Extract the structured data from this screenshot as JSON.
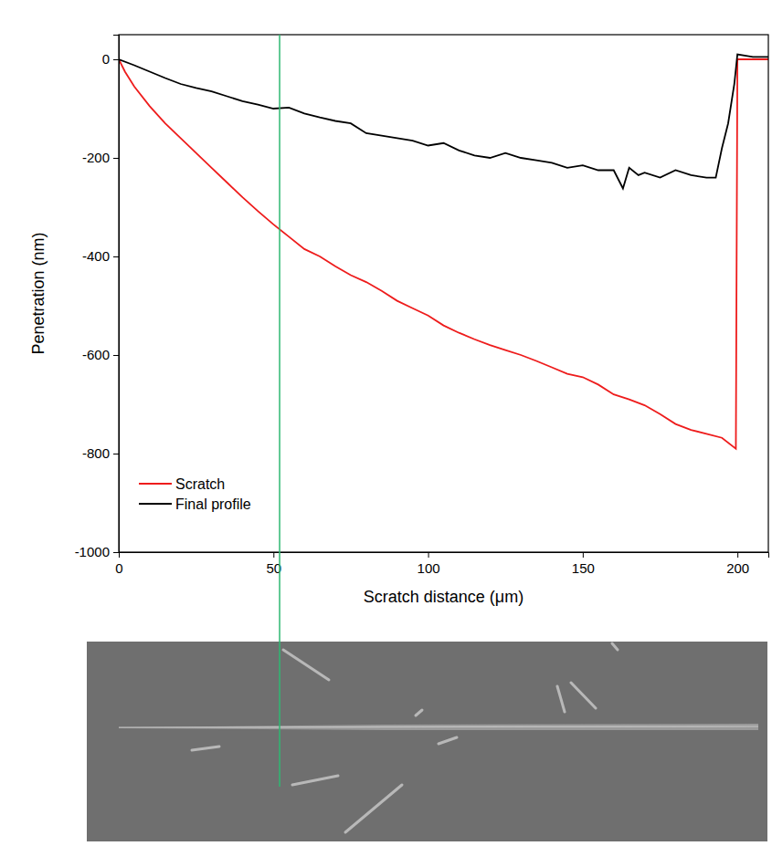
{
  "chart_data": {
    "type": "line",
    "x_label": "Scratch distance (μm)",
    "y_label": "Penetration (nm)",
    "xlim": [
      0,
      210
    ],
    "ylim": [
      -1000,
      50
    ],
    "xticks": [
      0,
      50,
      100,
      150,
      200
    ],
    "yticks": [
      0,
      -200,
      -400,
      -600,
      -800,
      -1000
    ],
    "grid": false,
    "legend": "lower left",
    "vline": {
      "x": 52,
      "color": "#2eb872"
    },
    "series": [
      {
        "name": "Scratch",
        "color": "#ee1c1c",
        "x": [
          0,
          2,
          5,
          10,
          15,
          20,
          25,
          30,
          35,
          40,
          45,
          50,
          55,
          60,
          65,
          70,
          75,
          80,
          85,
          90,
          95,
          100,
          105,
          110,
          115,
          120,
          125,
          130,
          135,
          140,
          145,
          150,
          155,
          160,
          165,
          170,
          175,
          180,
          185,
          190,
          195,
          199.5,
          200,
          205,
          210
        ],
        "values": [
          0,
          -25,
          -55,
          -95,
          -130,
          -160,
          -190,
          -220,
          -250,
          -280,
          -308,
          -335,
          -360,
          -385,
          -400,
          -420,
          -438,
          -452,
          -470,
          -490,
          -505,
          -520,
          -540,
          -555,
          -568,
          -580,
          -590,
          -600,
          -612,
          -625,
          -638,
          -645,
          -660,
          -680,
          -690,
          -702,
          -720,
          -740,
          -752,
          -760,
          -768,
          -790,
          0,
          0,
          0
        ]
      },
      {
        "name": "Final profile",
        "color": "#000000",
        "x": [
          0,
          5,
          10,
          15,
          20,
          25,
          30,
          35,
          40,
          45,
          50,
          55,
          60,
          65,
          70,
          75,
          80,
          85,
          90,
          95,
          100,
          105,
          110,
          115,
          120,
          125,
          130,
          135,
          140,
          145,
          150,
          155,
          160,
          163,
          165,
          168,
          170,
          175,
          180,
          185,
          190,
          193,
          195,
          197,
          199,
          200,
          205,
          210
        ],
        "values": [
          0,
          -12,
          -25,
          -38,
          -50,
          -58,
          -65,
          -75,
          -85,
          -92,
          -100,
          -98,
          -110,
          -118,
          -125,
          -130,
          -150,
          -155,
          -160,
          -165,
          -175,
          -170,
          -185,
          -195,
          -200,
          -190,
          -200,
          -205,
          -210,
          -220,
          -215,
          -225,
          -225,
          -262,
          -220,
          -235,
          -230,
          -240,
          -225,
          -235,
          -240,
          -240,
          -180,
          -130,
          -50,
          10,
          5,
          5
        ]
      }
    ]
  }
}
